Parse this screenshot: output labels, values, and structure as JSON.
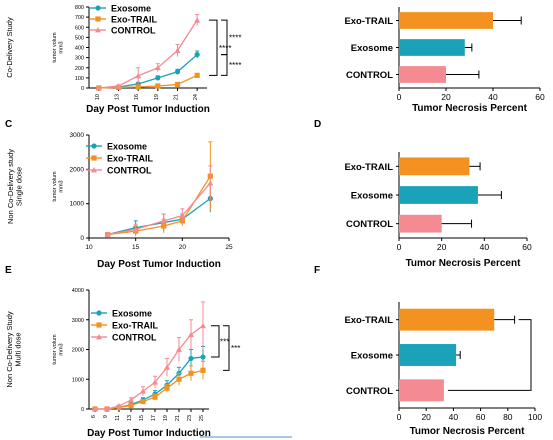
{
  "colors": {
    "exosome": "#1aa3b8",
    "exo_trail": "#f39220",
    "control": "#f48a92",
    "axis": "#000000"
  },
  "panel_labels": [
    "C",
    "D",
    "E",
    "F"
  ],
  "chart_data": [
    {
      "id": "A",
      "type": "line",
      "ylabel_group": "Co-Delivery Study",
      "ylabel": "tumor volum\nmm3",
      "xlabel": "Day Post Tumor Induction",
      "x": [
        10,
        13,
        16,
        19,
        21,
        24
      ],
      "xtick_labels": [
        "10",
        "13",
        "16",
        "19",
        "21",
        "24"
      ],
      "ylim": [
        0,
        800
      ],
      "yticks": [
        0,
        100,
        200,
        300,
        400,
        500,
        600,
        700,
        800
      ],
      "legend_position": "top-left",
      "series": [
        {
          "name": "Exosome",
          "color_key": "exosome",
          "marker": "circle",
          "values": [
            0,
            10,
            40,
            100,
            160,
            330
          ],
          "err": [
            0,
            5,
            15,
            20,
            25,
            35
          ]
        },
        {
          "name": "Exo-TRAIL",
          "color_key": "exo_trail",
          "marker": "square",
          "values": [
            0,
            5,
            10,
            20,
            35,
            125
          ],
          "err": [
            0,
            3,
            5,
            8,
            10,
            15
          ]
        },
        {
          "name": "CONTROL",
          "color_key": "control",
          "marker": "triangle",
          "values": [
            0,
            20,
            120,
            200,
            370,
            670
          ],
          "err": [
            0,
            10,
            80,
            40,
            60,
            55
          ]
        }
      ],
      "significance": [
        "****",
        "****",
        "****"
      ]
    },
    {
      "id": "B",
      "type": "bar",
      "orientation": "horizontal",
      "xlabel": "Tumor Necrosis Percent",
      "categories": [
        "Exo-TRAIL",
        "Exosome",
        "CONTROL"
      ],
      "values": [
        40,
        28,
        20
      ],
      "err": [
        12,
        3,
        14
      ],
      "color_keys": [
        "exo_trail",
        "exosome",
        "control"
      ],
      "xlim": [
        0,
        60
      ],
      "xticks": [
        "0",
        "20",
        "40",
        "60"
      ]
    },
    {
      "id": "C",
      "type": "line",
      "ylabel_group": "Non Co-Delivery study\nSingle dose",
      "ylabel": "tumor volum\nmm3",
      "xlabel": "Day Post Tumor Induction",
      "xlim": [
        10,
        25
      ],
      "xticks": [
        "10",
        "15",
        "20",
        "25"
      ],
      "ylim": [
        0,
        3000
      ],
      "yticks": [
        "0",
        "1000",
        "2000",
        "3000"
      ],
      "legend_position": "top-left",
      "series": [
        {
          "name": "Exosome",
          "color_key": "exosome",
          "marker": "circle",
          "x": [
            12,
            15,
            18,
            20,
            23
          ],
          "values": [
            100,
            300,
            450,
            550,
            1150
          ],
          "err": [
            50,
            200,
            250,
            150,
            400
          ]
        },
        {
          "name": "Exo-TRAIL",
          "color_key": "exo_trail",
          "marker": "square",
          "x": [
            12,
            15,
            18,
            20,
            23
          ],
          "values": [
            100,
            200,
            350,
            500,
            1800
          ],
          "err": [
            40,
            150,
            200,
            150,
            1000
          ]
        },
        {
          "name": "CONTROL",
          "color_key": "control",
          "marker": "triangle",
          "x": [
            12,
            15,
            18,
            20,
            23
          ],
          "values": [
            100,
            250,
            500,
            650,
            1600
          ],
          "err": [
            50,
            150,
            200,
            200,
            500
          ]
        }
      ]
    },
    {
      "id": "D",
      "type": "bar",
      "orientation": "horizontal",
      "xlabel": "Tumor Necrosis Percent",
      "categories": [
        "Exo-TRAIL",
        "Exosome",
        "CONTROL"
      ],
      "values": [
        33,
        37,
        20
      ],
      "err": [
        5,
        11,
        14
      ],
      "color_keys": [
        "exo_trail",
        "exosome",
        "control"
      ],
      "xlim": [
        0,
        60
      ],
      "xticks": [
        "0",
        "20",
        "40",
        "60"
      ]
    },
    {
      "id": "E",
      "type": "line",
      "ylabel_group": "Non Co-Delivery Study\nMulti dose",
      "ylabel": "tumor volum\nmm3",
      "xlabel": "Day Post Tumor Induction",
      "x": [
        6,
        9,
        11,
        13,
        15,
        17,
        19,
        21,
        23,
        25
      ],
      "xtick_labels": [
        "6",
        "9",
        "11",
        "13",
        "15",
        "17",
        "19",
        "21",
        "23",
        "25"
      ],
      "ylim": [
        0,
        4000
      ],
      "yticks": [
        "0",
        "1000",
        "2000",
        "3000",
        "4000"
      ],
      "legend_position": "top-left",
      "series": [
        {
          "name": "Exosome",
          "color_key": "exosome",
          "marker": "circle",
          "values": [
            0,
            0,
            50,
            150,
            300,
            500,
            800,
            1200,
            1700,
            1750
          ],
          "err": [
            0,
            0,
            20,
            50,
            80,
            120,
            150,
            200,
            300,
            350
          ]
        },
        {
          "name": "Exo-TRAIL",
          "color_key": "exo_trail",
          "marker": "square",
          "values": [
            0,
            0,
            50,
            120,
            250,
            400,
            700,
            1000,
            1200,
            1300
          ],
          "err": [
            0,
            0,
            20,
            40,
            60,
            100,
            120,
            200,
            250,
            300
          ]
        },
        {
          "name": "CONTROL",
          "color_key": "control",
          "marker": "triangle",
          "values": [
            0,
            0,
            100,
            300,
            600,
            900,
            1400,
            2000,
            2500,
            2800
          ],
          "err": [
            0,
            0,
            30,
            80,
            150,
            200,
            300,
            400,
            500,
            800
          ]
        }
      ],
      "significance": [
        "***",
        "***"
      ]
    },
    {
      "id": "F",
      "type": "bar",
      "orientation": "horizontal",
      "xlabel": "Tumor Necrosis Percent",
      "categories": [
        "Exo-TRAIL",
        "Exosome",
        "CONTROL"
      ],
      "values": [
        70,
        42,
        33
      ],
      "err": [
        15,
        3,
        0
      ],
      "color_keys": [
        "exo_trail",
        "exosome",
        "control"
      ],
      "xlim": [
        0,
        100
      ],
      "xticks": [
        "0",
        "20",
        "40",
        "60",
        "80",
        "100"
      ]
    }
  ]
}
